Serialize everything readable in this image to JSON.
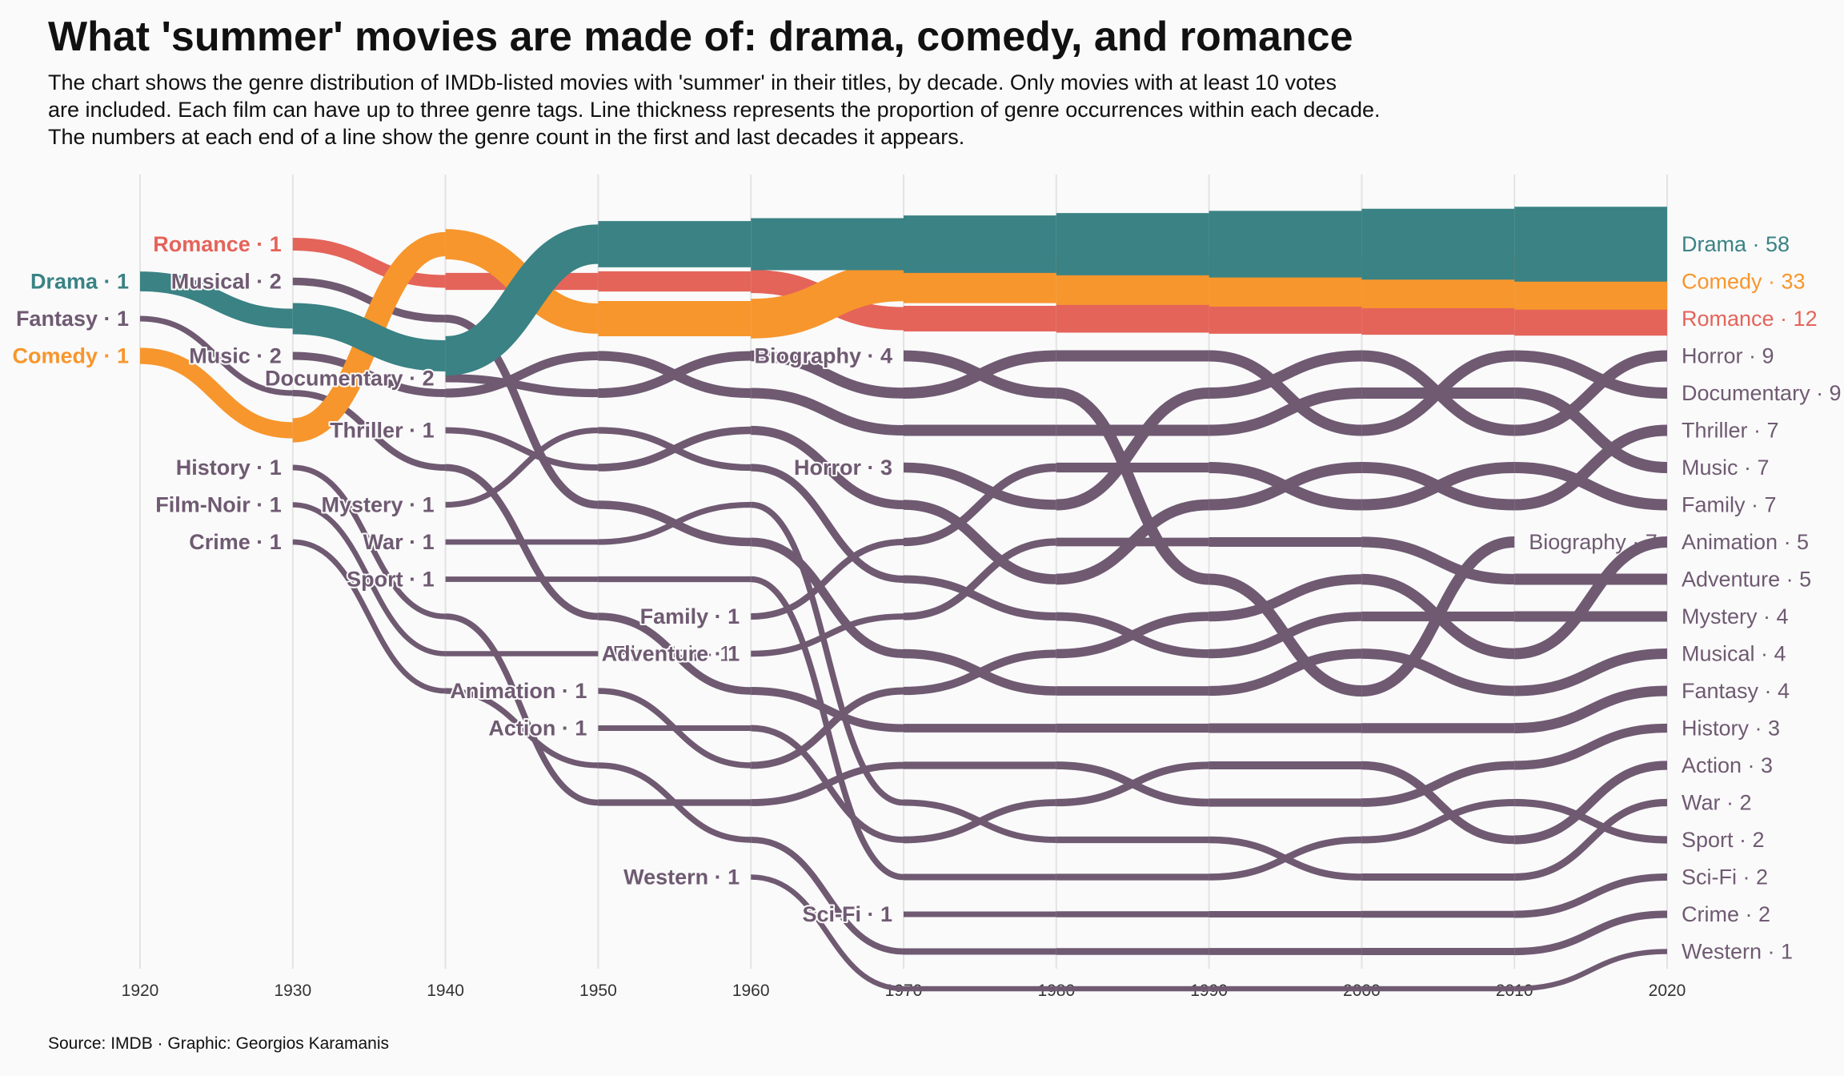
{
  "title": "What 'summer' movies are made of: drama, comedy, and romance",
  "subtitle": "The chart shows the genre distribution of IMDb-listed movies with 'summer' in their titles, by decade. Only movies with at least 10 votes\nare included. Each film can have up to three genre tags. Line thickness represents the proportion of genre occurrences within each decade.\nThe numbers at each end of a line show the genre count in the first and last decades it appears.",
  "caption": "Source: IMDB · Graphic: Georgios Karamanis",
  "colors": {
    "Drama": "#3a8284",
    "Comedy": "#f7962d",
    "Romance": "#e4645a",
    "Other": "#6f5a72",
    "grid": "#e3e3e3"
  },
  "chart_data": {
    "type": "bump",
    "x": [
      1920,
      1930,
      1940,
      1950,
      1960,
      1970,
      1980,
      1990,
      2000,
      2010,
      2020
    ],
    "xlim": [
      1920,
      2020
    ],
    "grid": "vertical",
    "genres": [
      {
        "name": "Drama",
        "first_decade": 1920,
        "first_count": 1,
        "last_count": 58,
        "ranks": [
          {
            "d": 1920,
            "r": 2
          },
          {
            "d": 1930,
            "r": 3
          },
          {
            "d": 1940,
            "r": 4
          },
          {
            "d": 1950,
            "r": 1
          },
          {
            "d": 1960,
            "r": 1
          },
          {
            "d": 1970,
            "r": 1
          },
          {
            "d": 1980,
            "r": 1
          },
          {
            "d": 1990,
            "r": 1
          },
          {
            "d": 2000,
            "r": 1
          },
          {
            "d": 2010,
            "r": 1
          },
          {
            "d": 2020,
            "r": 1
          }
        ]
      },
      {
        "name": "Comedy",
        "first_decade": 1920,
        "first_count": 1,
        "last_count": 33,
        "ranks": [
          {
            "d": 1920,
            "r": 4
          },
          {
            "d": 1930,
            "r": 6
          },
          {
            "d": 1940,
            "r": 1
          },
          {
            "d": 1950,
            "r": 3
          },
          {
            "d": 1960,
            "r": 3
          },
          {
            "d": 1970,
            "r": 2
          },
          {
            "d": 1980,
            "r": 2
          },
          {
            "d": 1990,
            "r": 2
          },
          {
            "d": 2000,
            "r": 2
          },
          {
            "d": 2010,
            "r": 2
          },
          {
            "d": 2020,
            "r": 2
          }
        ]
      },
      {
        "name": "Romance",
        "first_decade": 1930,
        "first_count": 1,
        "last_count": 12,
        "ranks": [
          {
            "d": 1930,
            "r": 1
          },
          {
            "d": 1940,
            "r": 2
          },
          {
            "d": 1950,
            "r": 2
          },
          {
            "d": 1960,
            "r": 2
          },
          {
            "d": 1970,
            "r": 3
          },
          {
            "d": 1980,
            "r": 3
          },
          {
            "d": 1990,
            "r": 3
          },
          {
            "d": 2000,
            "r": 3
          },
          {
            "d": 2010,
            "r": 3
          },
          {
            "d": 2020,
            "r": 3
          }
        ]
      },
      {
        "name": "Horror",
        "first_decade": 1970,
        "first_count": 3,
        "last_count": 9,
        "ranks": [
          {
            "d": 1970,
            "r": 7
          },
          {
            "d": 1980,
            "r": 8
          },
          {
            "d": 1990,
            "r": 5
          },
          {
            "d": 2000,
            "r": 4
          },
          {
            "d": 2010,
            "r": 6
          },
          {
            "d": 2020,
            "r": 4
          }
        ]
      },
      {
        "name": "Documentary",
        "first_decade": 1940,
        "first_count": 2,
        "last_count": 9,
        "ranks": [
          {
            "d": 1940,
            "r": 4.6
          },
          {
            "d": 1950,
            "r": 5
          },
          {
            "d": 1960,
            "r": 4
          },
          {
            "d": 1970,
            "r": 5
          },
          {
            "d": 1980,
            "r": 4
          },
          {
            "d": 1990,
            "r": 4
          },
          {
            "d": 2000,
            "r": 6
          },
          {
            "d": 2010,
            "r": 4
          },
          {
            "d": 2020,
            "r": 5
          }
        ]
      },
      {
        "name": "Thriller",
        "first_decade": 1940,
        "first_count": 1,
        "last_count": 7,
        "ranks": [
          {
            "d": 1940,
            "r": 6
          },
          {
            "d": 1950,
            "r": 7
          },
          {
            "d": 1960,
            "r": 6
          },
          {
            "d": 1970,
            "r": 8
          },
          {
            "d": 1980,
            "r": 10
          },
          {
            "d": 1990,
            "r": 8
          },
          {
            "d": 2000,
            "r": 7
          },
          {
            "d": 2010,
            "r": 8
          },
          {
            "d": 2020,
            "r": 6
          }
        ]
      },
      {
        "name": "Music",
        "first_decade": 1930,
        "first_count": 2,
        "last_count": 7,
        "ranks": [
          {
            "d": 1930,
            "r": 4
          },
          {
            "d": 1940,
            "r": 5
          },
          {
            "d": 1950,
            "r": 4
          },
          {
            "d": 1960,
            "r": 5
          },
          {
            "d": 1970,
            "r": 6
          },
          {
            "d": 1980,
            "r": 6
          },
          {
            "d": 1990,
            "r": 6
          },
          {
            "d": 2000,
            "r": 5
          },
          {
            "d": 2010,
            "r": 5
          },
          {
            "d": 2020,
            "r": 7
          }
        ]
      },
      {
        "name": "Family",
        "first_decade": 1960,
        "first_count": 1,
        "last_count": 7,
        "ranks": [
          {
            "d": 1960,
            "r": 11
          },
          {
            "d": 1970,
            "r": 9
          },
          {
            "d": 1980,
            "r": 7
          },
          {
            "d": 1990,
            "r": 7
          },
          {
            "d": 2000,
            "r": 8
          },
          {
            "d": 2010,
            "r": 7
          },
          {
            "d": 2020,
            "r": 8
          }
        ]
      },
      {
        "name": "Animation",
        "first_decade": 1950,
        "first_count": 1,
        "last_count": 5,
        "ranks": [
          {
            "d": 1950,
            "r": 13
          },
          {
            "d": 1960,
            "r": 15
          },
          {
            "d": 1970,
            "r": 13
          },
          {
            "d": 1980,
            "r": 12
          },
          {
            "d": 1990,
            "r": 11
          },
          {
            "d": 2000,
            "r": 10
          },
          {
            "d": 2010,
            "r": 12
          },
          {
            "d": 2020,
            "r": 9
          }
        ]
      },
      {
        "name": "Adventure",
        "first_decade": 1960,
        "first_count": 1,
        "last_count": 5,
        "ranks": [
          {
            "d": 1960,
            "r": 12
          },
          {
            "d": 1970,
            "r": 11
          },
          {
            "d": 1980,
            "r": 9
          },
          {
            "d": 1990,
            "r": 9
          },
          {
            "d": 2000,
            "r": 9
          },
          {
            "d": 2010,
            "r": 10
          },
          {
            "d": 2020,
            "r": 10
          }
        ]
      },
      {
        "name": "Mystery",
        "first_decade": 1940,
        "first_count": 1,
        "last_count": 4,
        "ranks": [
          {
            "d": 1940,
            "r": 8
          },
          {
            "d": 1950,
            "r": 6
          },
          {
            "d": 1960,
            "r": 7
          },
          {
            "d": 1970,
            "r": 10
          },
          {
            "d": 1980,
            "r": 11
          },
          {
            "d": 1990,
            "r": 12
          },
          {
            "d": 2000,
            "r": 11
          },
          {
            "d": 2010,
            "r": 11
          },
          {
            "d": 2020,
            "r": 11
          }
        ]
      },
      {
        "name": "Musical",
        "first_decade": 1930,
        "first_count": 2,
        "last_count": 4,
        "ranks": [
          {
            "d": 1930,
            "r": 2
          },
          {
            "d": 1940,
            "r": 3
          },
          {
            "d": 1950,
            "r": 8
          },
          {
            "d": 1960,
            "r": 9
          },
          {
            "d": 1970,
            "r": 12
          },
          {
            "d": 1980,
            "r": 13
          },
          {
            "d": 1990,
            "r": 13
          },
          {
            "d": 2000,
            "r": 12
          },
          {
            "d": 2010,
            "r": 13
          },
          {
            "d": 2020,
            "r": 12
          }
        ]
      },
      {
        "name": "Fantasy",
        "first_decade": 1920,
        "first_count": 1,
        "last_count": 4,
        "ranks": [
          {
            "d": 1920,
            "r": 3
          },
          {
            "d": 1930,
            "r": 5
          },
          {
            "d": 1940,
            "r": 7
          },
          {
            "d": 1950,
            "r": 11
          },
          {
            "d": 1960,
            "r": 13
          },
          {
            "d": 1970,
            "r": 14
          },
          {
            "d": 1980,
            "r": 14
          },
          {
            "d": 1990,
            "r": 14
          },
          {
            "d": 2000,
            "r": 14
          },
          {
            "d": 2010,
            "r": 14
          },
          {
            "d": 2020,
            "r": 13
          }
        ]
      },
      {
        "name": "History",
        "first_decade": 1930,
        "first_count": 1,
        "last_count": 3,
        "ranks": [
          {
            "d": 1930,
            "r": 7
          },
          {
            "d": 1940,
            "r": 11
          },
          {
            "d": 1950,
            "r": 16
          },
          {
            "d": 1960,
            "r": 16
          },
          {
            "d": 1970,
            "r": 15
          },
          {
            "d": 1980,
            "r": 15
          },
          {
            "d": 1990,
            "r": 16
          },
          {
            "d": 2000,
            "r": 16
          },
          {
            "d": 2010,
            "r": 15
          },
          {
            "d": 2020,
            "r": 14
          }
        ]
      },
      {
        "name": "Action",
        "first_decade": 1950,
        "first_count": 1,
        "last_count": 3,
        "ranks": [
          {
            "d": 1950,
            "r": 14
          },
          {
            "d": 1960,
            "r": 14
          },
          {
            "d": 1970,
            "r": 17
          },
          {
            "d": 1980,
            "r": 16
          },
          {
            "d": 1990,
            "r": 15
          },
          {
            "d": 2000,
            "r": 15
          },
          {
            "d": 2010,
            "r": 17
          },
          {
            "d": 2020,
            "r": 15
          }
        ]
      },
      {
        "name": "War",
        "first_decade": 1940,
        "first_count": 1,
        "last_count": 2,
        "ranks": [
          {
            "d": 1940,
            "r": 9
          },
          {
            "d": 1950,
            "r": 9
          },
          {
            "d": 1960,
            "r": 8
          },
          {
            "d": 1970,
            "r": 16
          },
          {
            "d": 1980,
            "r": 17
          },
          {
            "d": 1990,
            "r": 17
          },
          {
            "d": 2000,
            "r": 18
          },
          {
            "d": 2010,
            "r": 18
          },
          {
            "d": 2020,
            "r": 16
          }
        ]
      },
      {
        "name": "Sport",
        "first_decade": 1940,
        "first_count": 1,
        "last_count": 2,
        "ranks": [
          {
            "d": 1940,
            "r": 10
          },
          {
            "d": 1950,
            "r": 10
          },
          {
            "d": 1960,
            "r": 10
          },
          {
            "d": 1970,
            "r": 18
          },
          {
            "d": 1980,
            "r": 18
          },
          {
            "d": 1990,
            "r": 18
          },
          {
            "d": 2000,
            "r": 17
          },
          {
            "d": 2010,
            "r": 16
          },
          {
            "d": 2020,
            "r": 17
          }
        ]
      },
      {
        "name": "Sci-Fi",
        "first_decade": 1970,
        "first_count": 1,
        "last_count": 2,
        "ranks": [
          {
            "d": 1970,
            "r": 19
          },
          {
            "d": 1980,
            "r": 19
          },
          {
            "d": 1990,
            "r": 19
          },
          {
            "d": 2000,
            "r": 19
          },
          {
            "d": 2010,
            "r": 19
          },
          {
            "d": 2020,
            "r": 18
          }
        ]
      },
      {
        "name": "Crime",
        "first_decade": 1930,
        "first_count": 1,
        "last_count": 2,
        "ranks": [
          {
            "d": 1930,
            "r": 9
          },
          {
            "d": 1940,
            "r": 13
          },
          {
            "d": 1950,
            "r": 15
          },
          {
            "d": 1960,
            "r": 17
          },
          {
            "d": 1970,
            "r": 20
          },
          {
            "d": 1980,
            "r": 20
          },
          {
            "d": 1990,
            "r": 20
          },
          {
            "d": 2000,
            "r": 20
          },
          {
            "d": 2010,
            "r": 20
          },
          {
            "d": 2020,
            "r": 19
          }
        ]
      },
      {
        "name": "Western",
        "first_decade": 1960,
        "first_count": 1,
        "last_count": 1,
        "ranks": [
          {
            "d": 1960,
            "r": 18
          },
          {
            "d": 1970,
            "r": 21
          },
          {
            "d": 1980,
            "r": 21
          },
          {
            "d": 1990,
            "r": 21
          },
          {
            "d": 2000,
            "r": 21
          },
          {
            "d": 2010,
            "r": 21
          },
          {
            "d": 2020,
            "r": 20
          }
        ]
      },
      {
        "name": "Biography",
        "first_decade": 1970,
        "first_count": 4,
        "last_count": 7,
        "last_decade": 2010,
        "ranks": [
          {
            "d": 1970,
            "r": 4
          },
          {
            "d": 1980,
            "r": 5
          },
          {
            "d": 1990,
            "r": 10
          },
          {
            "d": 2000,
            "r": 13
          },
          {
            "d": 2010,
            "r": 9
          }
        ]
      },
      {
        "name": "Film-Noir",
        "first_decade": 1930,
        "first_count": 1,
        "last_count": 1,
        "last_decade": 1950,
        "ranks": [
          {
            "d": 1930,
            "r": 8
          },
          {
            "d": 1940,
            "r": 12
          },
          {
            "d": 1950,
            "r": 12
          }
        ]
      }
    ]
  }
}
